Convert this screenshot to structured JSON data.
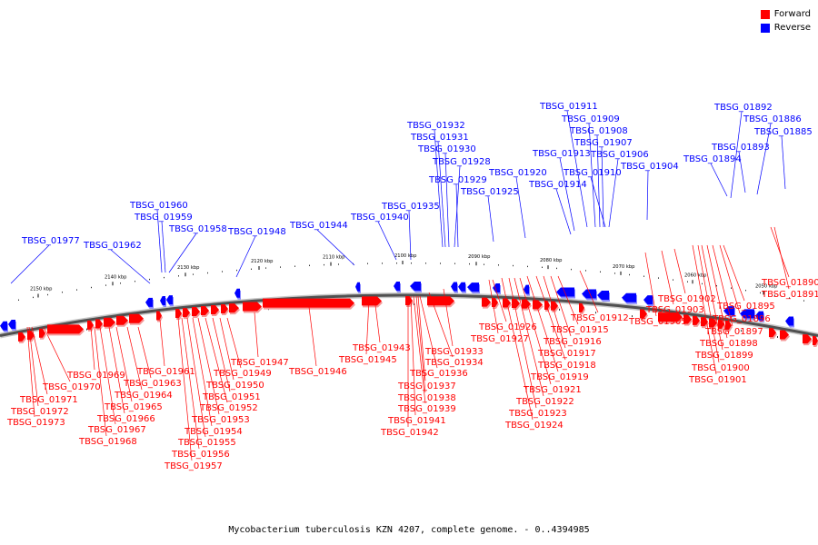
{
  "legend": {
    "forward_label": "Forward",
    "reverse_label": "Reverse",
    "forward_color": "#ff0000",
    "reverse_color": "#0000ff"
  },
  "caption": "Mycobacterium tuberculosis KZN 4207, complete genome. - 0..4394985",
  "scale_ticks": [
    {
      "label": "2150 kbp",
      "kbp": 2150
    },
    {
      "label": "2140 kbp",
      "kbp": 2140
    },
    {
      "label": "2130 kbp",
      "kbp": 2130
    },
    {
      "label": "2120 kbp",
      "kbp": 2120
    },
    {
      "label": "2110 kbp",
      "kbp": 2110
    },
    {
      "label": "2100 kbp",
      "kbp": 2100
    },
    {
      "label": "2090 kbp",
      "kbp": 2090
    },
    {
      "label": "2080 kbp",
      "kbp": 2080
    },
    {
      "label": "2070 kbp",
      "kbp": 2070
    },
    {
      "label": "2060 kbp",
      "kbp": 2060
    },
    {
      "label": "2050 kbp",
      "kbp": 2050
    }
  ],
  "reverse_genes": [
    "TBSG_01977",
    "TBSG_01962",
    "TBSG_01960",
    "TBSG_01959",
    "TBSG_01958",
    "TBSG_01948",
    "TBSG_01944",
    "TBSG_01940",
    "TBSG_01935",
    "TBSG_01932",
    "TBSG_01931",
    "TBSG_01930",
    "TBSG_01928",
    "TBSG_01929",
    "TBSG_01925",
    "TBSG_01920",
    "TBSG_01914",
    "TBSG_01913",
    "TBSG_01911",
    "TBSG_01909",
    "TBSG_01908",
    "TBSG_01907",
    "TBSG_01906",
    "TBSG_01910",
    "TBSG_01904",
    "TBSG_01892",
    "TBSG_01886",
    "TBSG_01885",
    "TBSG_01893",
    "TBSG_01894"
  ],
  "forward_genes": [
    "TBSG_01971",
    "TBSG_01972",
    "TBSG_01973",
    "TBSG_01970",
    "TBSG_01969",
    "TBSG_01968",
    "TBSG_01967",
    "TBSG_01966",
    "TBSG_01965",
    "TBSG_01964",
    "TBSG_01963",
    "TBSG_01961",
    "TBSG_01957",
    "TBSG_01956",
    "TBSG_01955",
    "TBSG_01954",
    "TBSG_01953",
    "TBSG_01952",
    "TBSG_01951",
    "TBSG_01950",
    "TBSG_01949",
    "TBSG_01947",
    "TBSG_01946",
    "TBSG_01945",
    "TBSG_01943",
    "TBSG_01942",
    "TBSG_01941",
    "TBSG_01939",
    "TBSG_01938",
    "TBSG_01937",
    "TBSG_01936",
    "TBSG_01934",
    "TBSG_01933",
    "TBSG_01927",
    "TBSG_01926",
    "TBSG_01924",
    "TBSG_01923",
    "TBSG_01922",
    "TBSG_01921",
    "TBSG_01919",
    "TBSG_01918",
    "TBSG_01917",
    "TBSG_01916",
    "TBSG_01915",
    "TBSG_01912",
    "TBSG_01905",
    "TBSG_01903",
    "TBSG_01902",
    "TBSG_01901",
    "TBSG_01900",
    "TBSG_01899",
    "TBSG_01898",
    "TBSG_01897",
    "TBSG_01896",
    "TBSG_01895",
    "TBSG_01891",
    "TBSG_01890"
  ]
}
